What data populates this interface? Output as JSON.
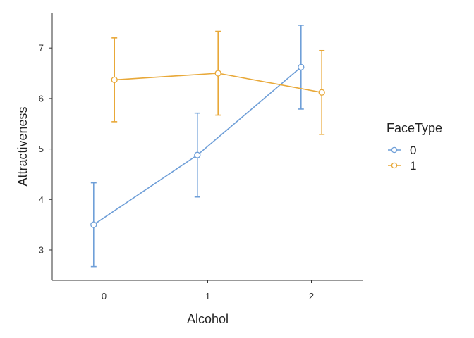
{
  "chart_data": {
    "type": "line",
    "xlabel": "Alcohol",
    "ylabel": "Attractiveness",
    "x_ticks": [
      "0",
      "1",
      "2"
    ],
    "y_ticks": [
      "3",
      "4",
      "5",
      "6",
      "7"
    ],
    "xlim": [
      -0.5,
      2.5
    ],
    "ylim": [
      2.4,
      7.7
    ],
    "grid": false,
    "legend": {
      "title": "FaceType",
      "position": "right"
    },
    "series": [
      {
        "name": "0",
        "color": "#6f9fd8",
        "x": [
          0,
          1,
          2
        ],
        "y": [
          3.5,
          4.88,
          6.62
        ],
        "err_low": [
          2.67,
          4.05,
          5.79
        ],
        "err_high": [
          4.33,
          5.71,
          7.45
        ]
      },
      {
        "name": "1",
        "color": "#e8a838",
        "x": [
          0,
          1,
          2
        ],
        "y": [
          6.37,
          6.5,
          6.12
        ],
        "err_low": [
          5.54,
          5.67,
          5.29
        ],
        "err_high": [
          7.2,
          7.33,
          6.95
        ]
      }
    ]
  }
}
